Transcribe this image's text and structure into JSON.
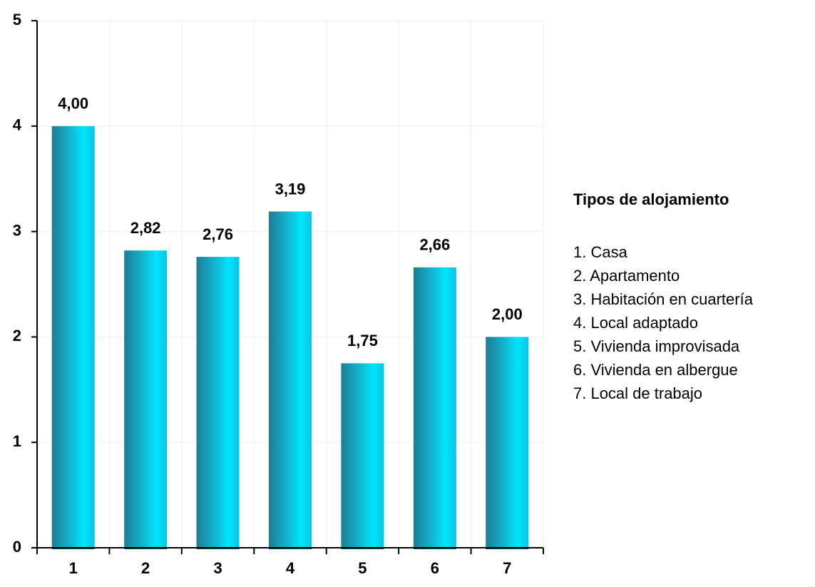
{
  "chart_data": {
    "type": "bar",
    "categories": [
      "1",
      "2",
      "3",
      "4",
      "5",
      "6",
      "7"
    ],
    "values": [
      4.0,
      2.82,
      2.76,
      3.19,
      1.75,
      2.66,
      2.0
    ],
    "value_labels": [
      "4,00",
      "2,82",
      "2,76",
      "3,19",
      "1,75",
      "2,66",
      "2,00"
    ],
    "color": "#00e5ff",
    "ylim": [
      0,
      5
    ],
    "yticks": [
      0,
      1,
      2,
      3,
      4,
      5
    ],
    "grid": true,
    "legend_title": "Tipos de alojamiento",
    "legend_items": [
      "1. Casa",
      "2. Apartamento",
      "3. Habitación en cuartería",
      "4. Local adaptado",
      "5. Vivienda improvisada",
      "6. Vivienda en albergue",
      "7. Local de trabajo"
    ]
  }
}
